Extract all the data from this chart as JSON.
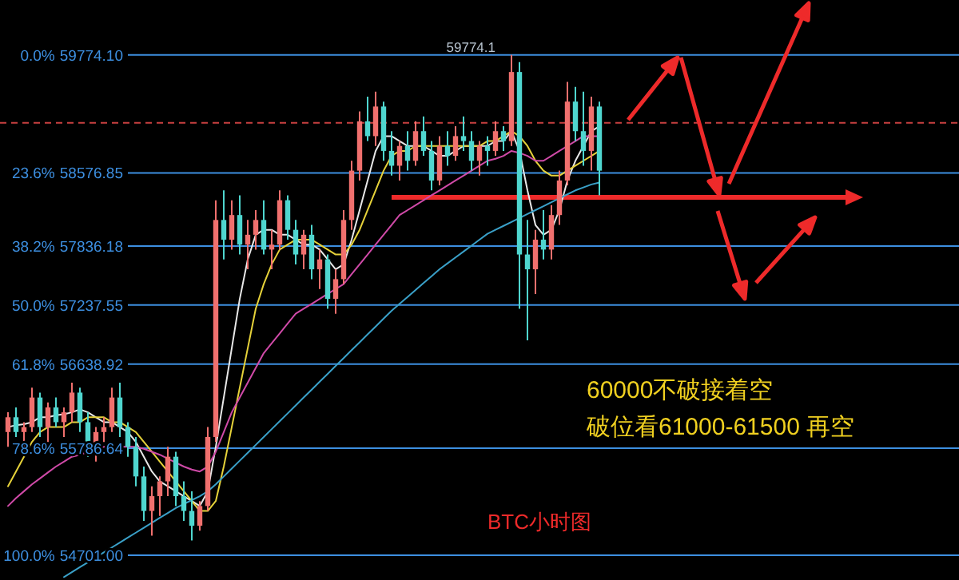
{
  "chart_data": {
    "type": "candlestick",
    "grid": "y",
    "ylim": [
      54450,
      60330
    ],
    "yticks": [
      {
        "value": 59774.1,
        "label": "59774.10"
      },
      {
        "value": 58576.85,
        "label": "58576.85"
      },
      {
        "value": 57836.18,
        "label": "57836.18"
      },
      {
        "value": 57237.55,
        "label": "57237.55"
      },
      {
        "value": 56638.92,
        "label": "56638.92"
      },
      {
        "value": 55786.64,
        "label": "55786.64"
      },
      {
        "value": 54701.0,
        "label": "54701.00"
      }
    ],
    "categories": [
      null,
      null,
      null,
      null,
      null,
      null,
      null,
      null,
      null,
      null,
      null,
      null,
      null,
      null,
      null,
      null,
      null,
      null,
      null,
      null,
      null,
      null,
      null,
      null,
      null,
      null,
      null,
      null,
      null,
      null,
      null,
      null,
      null,
      null,
      null,
      null,
      null,
      null,
      null,
      null,
      null,
      null,
      null,
      null,
      null,
      null,
      null,
      null,
      null,
      null,
      null,
      null,
      null,
      null,
      null,
      null,
      null,
      null,
      null,
      null,
      null,
      null,
      null,
      null,
      null,
      null,
      null,
      null,
      null,
      null,
      null,
      null,
      null,
      null,
      null
    ],
    "ohlc": [
      [
        55950,
        56150,
        55800,
        56100
      ],
      [
        56100,
        56200,
        55900,
        55950
      ],
      [
        55950,
        56050,
        55750,
        56000
      ],
      [
        56000,
        56400,
        55950,
        56300
      ],
      [
        56300,
        56350,
        55900,
        56000
      ],
      [
        56000,
        56250,
        55850,
        56200
      ],
      [
        56200,
        56300,
        56000,
        56050
      ],
      [
        56050,
        56200,
        55900,
        56150
      ],
      [
        56150,
        56450,
        56050,
        56350
      ],
      [
        56350,
        56400,
        55950,
        56050
      ],
      [
        56050,
        56150,
        55700,
        55800
      ],
      [
        55800,
        56000,
        55650,
        55950
      ],
      [
        55950,
        56100,
        55850,
        56000
      ],
      [
        56000,
        56400,
        55950,
        56300
      ],
      [
        56300,
        56450,
        55900,
        56000
      ],
      [
        56000,
        56050,
        55700,
        55800
      ],
      [
        55800,
        55900,
        55400,
        55500
      ],
      [
        55500,
        55600,
        55050,
        55150
      ],
      [
        55150,
        55400,
        54900,
        55300
      ],
      [
        55300,
        55500,
        55100,
        55450
      ],
      [
        55450,
        55800,
        55300,
        55700
      ],
      [
        55700,
        55750,
        55200,
        55300
      ],
      [
        55300,
        55450,
        55050,
        55150
      ],
      [
        55150,
        55350,
        54850,
        55000
      ],
      [
        55000,
        55250,
        54950,
        55200
      ],
      [
        55200,
        56000,
        55150,
        55900
      ],
      [
        55900,
        58300,
        55850,
        58100
      ],
      [
        58100,
        58400,
        57700,
        57900
      ],
      [
        57900,
        58300,
        57800,
        58150
      ],
      [
        58150,
        58350,
        57750,
        57850
      ],
      [
        57850,
        58100,
        57600,
        57950
      ],
      [
        57950,
        58200,
        57800,
        58100
      ],
      [
        58100,
        58300,
        57750,
        57800
      ],
      [
        57800,
        58000,
        57600,
        57850
      ],
      [
        57850,
        58400,
        57800,
        58300
      ],
      [
        58300,
        58350,
        57900,
        58000
      ],
      [
        58000,
        58100,
        57650,
        57750
      ],
      [
        57750,
        58000,
        57600,
        57950
      ],
      [
        57950,
        58050,
        57500,
        57600
      ],
      [
        57600,
        57800,
        57400,
        57700
      ],
      [
        57700,
        57750,
        57200,
        57300
      ],
      [
        57300,
        57600,
        57150,
        57500
      ],
      [
        57500,
        58200,
        57450,
        58100
      ],
      [
        58100,
        58700,
        58000,
        58600
      ],
      [
        58600,
        59200,
        58500,
        59100
      ],
      [
        59100,
        59350,
        58900,
        58950
      ],
      [
        58950,
        59400,
        58850,
        59250
      ],
      [
        59250,
        59300,
        58700,
        58800
      ],
      [
        58800,
        59000,
        58550,
        58650
      ],
      [
        58650,
        58900,
        58500,
        58850
      ],
      [
        58850,
        59000,
        58600,
        58700
      ],
      [
        58700,
        59100,
        58650,
        59000
      ],
      [
        59000,
        59150,
        58750,
        58800
      ],
      [
        58800,
        58900,
        58400,
        58500
      ],
      [
        58500,
        58950,
        58450,
        58850
      ],
      [
        58850,
        59000,
        58650,
        58750
      ],
      [
        58750,
        59050,
        58700,
        58950
      ],
      [
        58950,
        59150,
        58800,
        58900
      ],
      [
        58900,
        59000,
        58600,
        58700
      ],
      [
        58700,
        58900,
        58550,
        58850
      ],
      [
        58850,
        58950,
        58650,
        58800
      ],
      [
        58800,
        59100,
        58750,
        59000
      ],
      [
        59000,
        59050,
        58800,
        58900
      ],
      [
        58900,
        59774.1,
        58850,
        59600
      ],
      [
        59600,
        59700,
        57200,
        57750
      ],
      [
        57750,
        58100,
        56880,
        57600
      ],
      [
        57600,
        58000,
        57350,
        57900
      ],
      [
        57900,
        58200,
        57700,
        57800
      ],
      [
        57800,
        58250,
        57700,
        58150
      ],
      [
        58150,
        58600,
        58050,
        58500
      ],
      [
        58500,
        59500,
        58450,
        59300
      ],
      [
        59300,
        59450,
        58900,
        59000
      ],
      [
        59000,
        59400,
        58650,
        58800
      ],
      [
        58800,
        59350,
        58600,
        59250
      ],
      [
        59250,
        59300,
        58350,
        58600
      ]
    ],
    "series": [
      {
        "type": "line",
        "color": "#e8e8e8",
        "values": [
          56000,
          56020,
          56030,
          56050,
          56100,
          56100,
          56120,
          56130,
          56150,
          56180,
          56150,
          56100,
          56050,
          56050,
          56000,
          55950,
          55850,
          55700,
          55550,
          55450,
          55400,
          55350,
          55300,
          55250,
          55200,
          55350,
          55800,
          56300,
          56800,
          57300,
          57700,
          57950,
          58000,
          58000,
          57950,
          57950,
          57900,
          57850,
          57850,
          57800,
          57700,
          57600,
          57650,
          57900,
          58200,
          58500,
          58800,
          58950,
          58950,
          58900,
          58850,
          58850,
          58850,
          58800,
          58750,
          58750,
          58800,
          58850,
          58850,
          58850,
          58850,
          58900,
          58900,
          59000,
          58800,
          58400,
          58050,
          57950,
          58000,
          58200,
          58500,
          58700,
          58850,
          59000,
          59050
        ]
      },
      {
        "type": "line",
        "color": "#e6d23a",
        "values": [
          55400,
          55550,
          55700,
          55850,
          55950,
          56000,
          56000,
          56000,
          56050,
          56050,
          56100,
          56100,
          56100,
          56050,
          56050,
          56000,
          55950,
          55850,
          55750,
          55650,
          55550,
          55450,
          55350,
          55250,
          55150,
          55150,
          55250,
          55600,
          56000,
          56400,
          56800,
          57200,
          57450,
          57650,
          57800,
          57850,
          57900,
          57900,
          57900,
          57850,
          57800,
          57750,
          57750,
          57850,
          58000,
          58200,
          58400,
          58600,
          58750,
          58800,
          58800,
          58850,
          58850,
          58850,
          58850,
          58850,
          58850,
          58850,
          58850,
          58850,
          58900,
          58900,
          58950,
          59000,
          58950,
          58850,
          58700,
          58600,
          58550,
          58550,
          58600,
          58650,
          58700,
          58750,
          58800
        ]
      },
      {
        "type": "line",
        "color": "#d04aa8",
        "values": [
          55200,
          55280,
          55350,
          55420,
          55480,
          55540,
          55600,
          55650,
          55700,
          55720,
          55750,
          55780,
          55800,
          55800,
          55800,
          55800,
          55800,
          55780,
          55750,
          55720,
          55680,
          55640,
          55600,
          55570,
          55550,
          55600,
          55750,
          55950,
          56150,
          56300,
          56450,
          56600,
          56750,
          56850,
          56950,
          57050,
          57150,
          57200,
          57250,
          57300,
          57350,
          57400,
          57450,
          57550,
          57650,
          57750,
          57850,
          57950,
          58050,
          58150,
          58200,
          58250,
          58300,
          58350,
          58400,
          58450,
          58500,
          58550,
          58600,
          58650,
          58700,
          58720,
          58750,
          58800,
          58780,
          58750,
          58700,
          58700,
          58750,
          58800,
          58850,
          58900,
          58950,
          58950,
          58950
        ]
      },
      {
        "type": "line",
        "color": "#3aa0c8",
        "values": [
          null,
          null,
          null,
          null,
          null,
          null,
          null,
          54480,
          54530,
          54580,
          54630,
          54680,
          54730,
          54780,
          54830,
          54880,
          54930,
          54980,
          55030,
          55080,
          55130,
          55180,
          55220,
          55260,
          55300,
          55350,
          55420,
          55500,
          55580,
          55660,
          55740,
          55820,
          55900,
          55980,
          56060,
          56140,
          56220,
          56300,
          56380,
          56460,
          56540,
          56620,
          56700,
          56780,
          56860,
          56940,
          57020,
          57100,
          57180,
          57250,
          57320,
          57390,
          57460,
          57530,
          57600,
          57660,
          57720,
          57780,
          57840,
          57900,
          57960,
          58000,
          58040,
          58080,
          58120,
          58160,
          58200,
          58240,
          58280,
          58320,
          58360,
          58400,
          58430,
          58460,
          58480
        ]
      }
    ],
    "ref_lines": [
      {
        "axis": "y",
        "value": 59084,
        "label": null,
        "color": "#c84040",
        "line_style": "dashed"
      },
      {
        "axis": "y",
        "value": 58330,
        "label": null,
        "color": "#ee2a2a"
      }
    ],
    "annotations": [
      "59774.1",
      "0.0%",
      "23.6%",
      "38.2%",
      "50.0%",
      "61.8%",
      "78.6%",
      "100.0%",
      "60000不破接着空",
      "破位看61000-61500  再空",
      "BTC小时图"
    ]
  }
}
